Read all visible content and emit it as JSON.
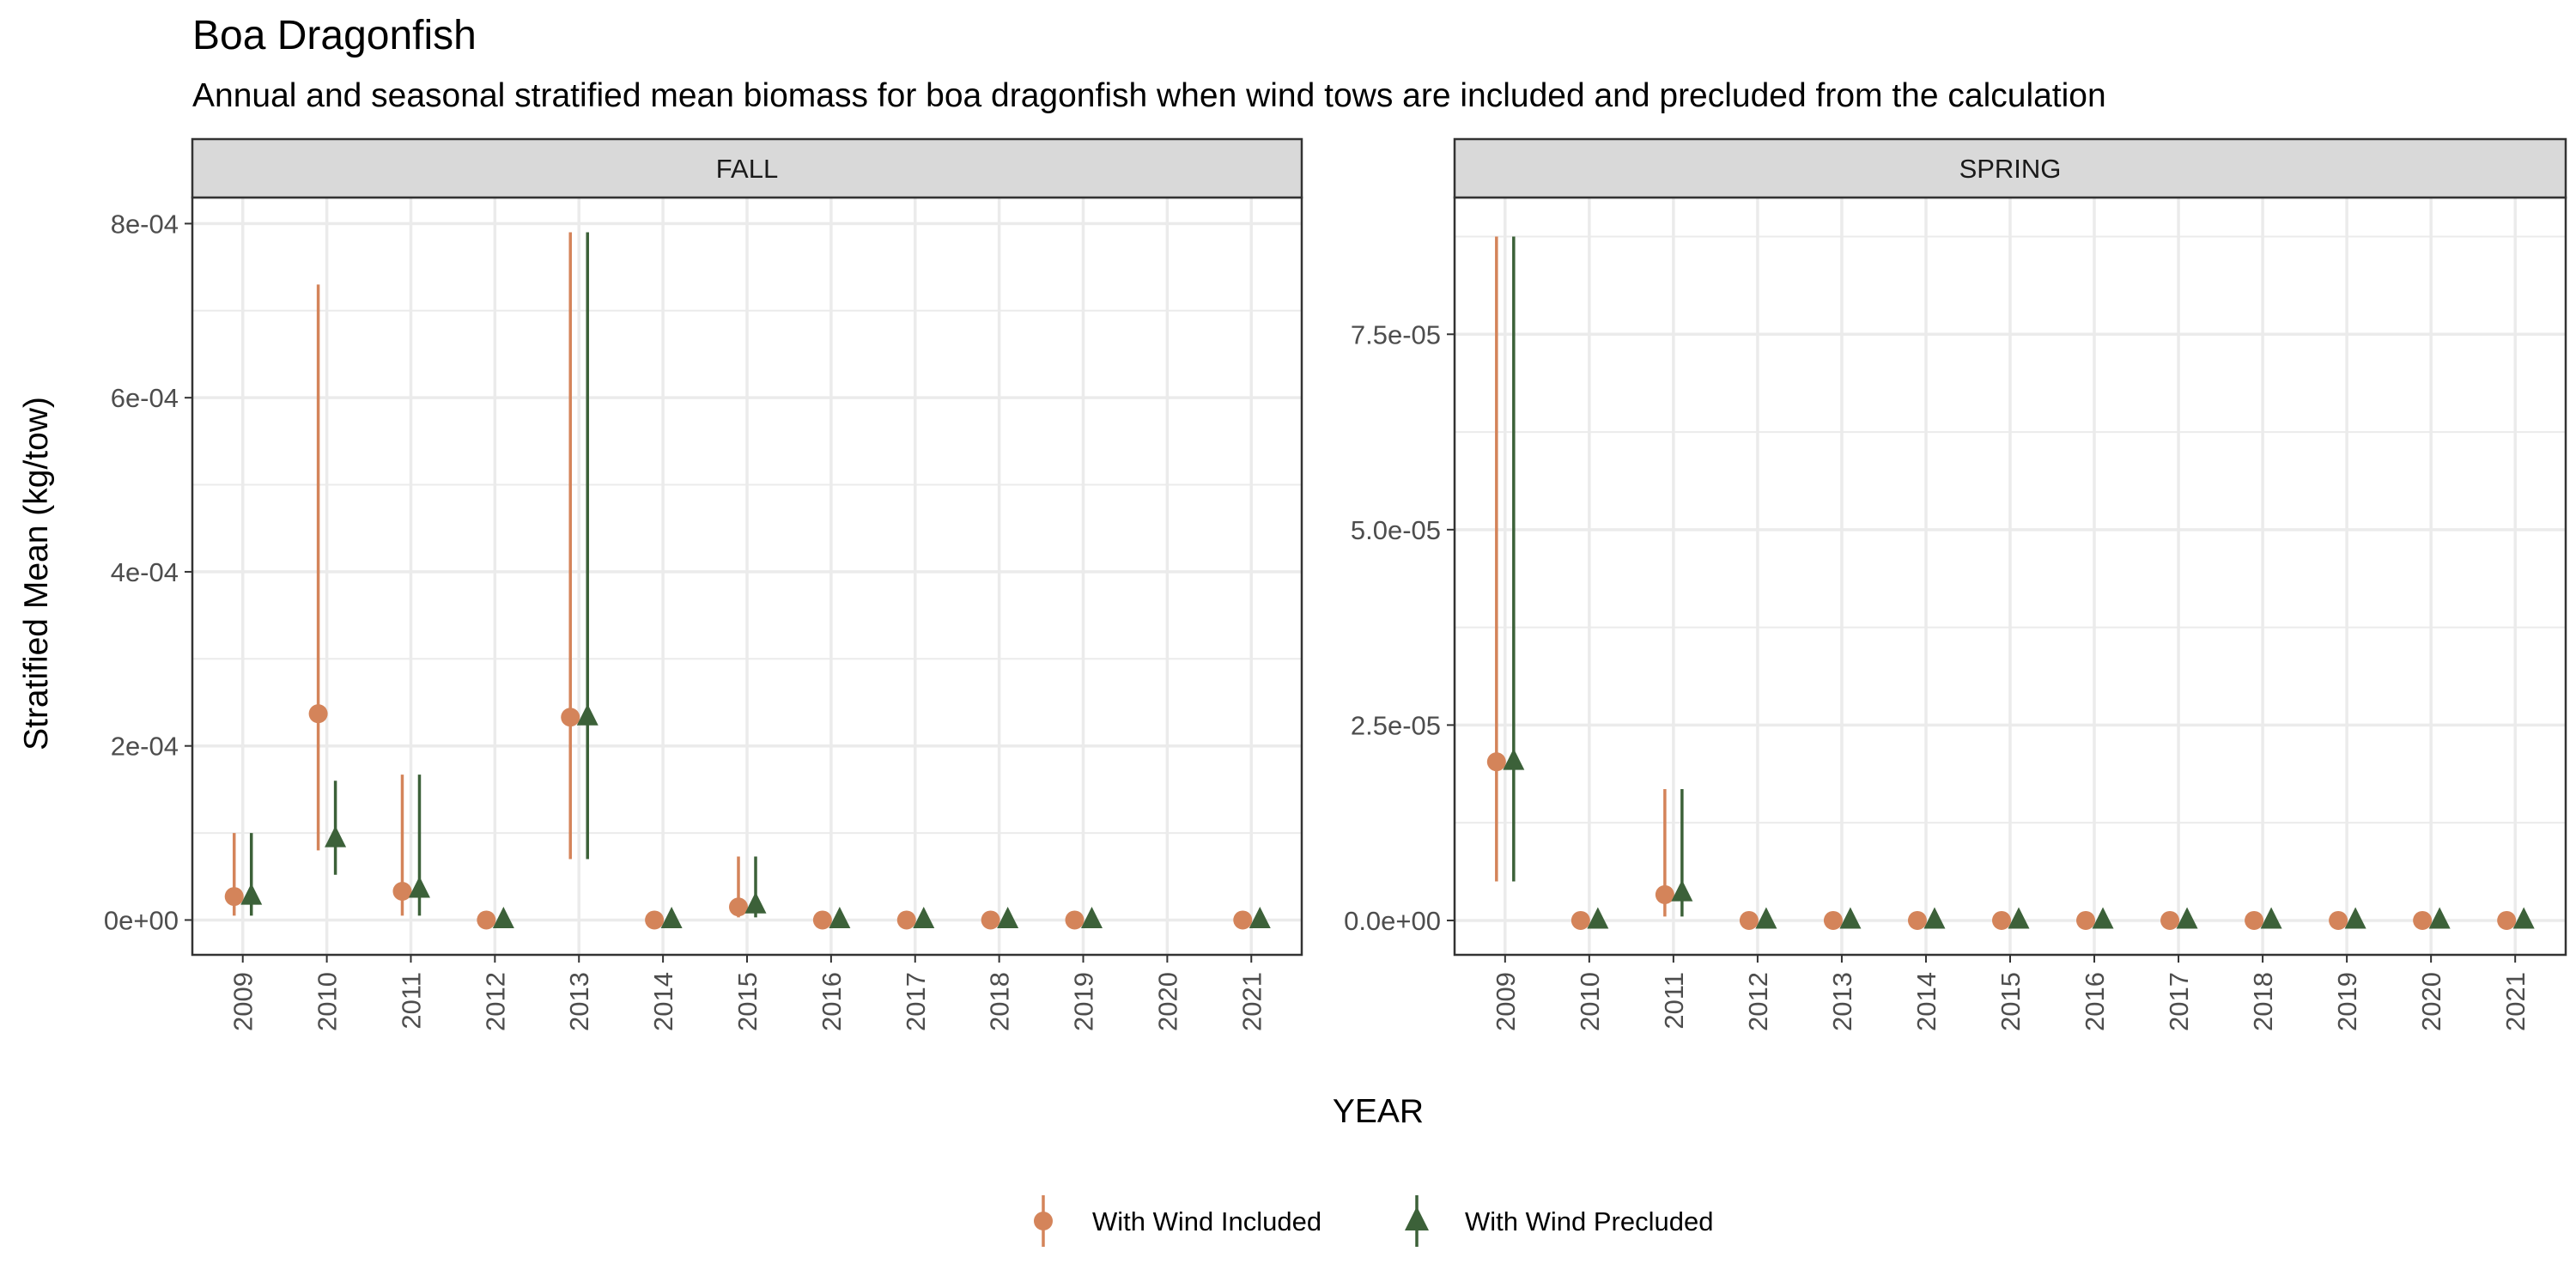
{
  "title": "Boa Dragonfish",
  "subtitle": "Annual and seasonal stratified mean biomass for boa dragonfish when wind tows are included and precluded from the calculation",
  "colors": {
    "included": "#D4845A",
    "precluded": "#3C6139",
    "strip_bg": "#D9D9D9",
    "grid": "#EBEBEB"
  },
  "chart_data": {
    "type": "scatter",
    "xlabel": "YEAR",
    "ylabel": "Stratified Mean (kg/tow)",
    "grid": true,
    "legend_position": "bottom",
    "legend": [
      {
        "name": "With Wind Included",
        "shape": "circle",
        "color": "#D4845A"
      },
      {
        "name": "With Wind Precluded",
        "shape": "triangle",
        "color": "#3C6139"
      }
    ],
    "panels": [
      {
        "name": "FALL",
        "ylim": [
          -4e-05,
          0.00083
        ],
        "yticks": [
          0,
          0.0002,
          0.0004,
          0.0006,
          0.0008
        ],
        "ytick_labels": [
          "0e+00",
          "2e-04",
          "4e-04",
          "6e-04",
          "8e-04"
        ],
        "categories": [
          "2009",
          "2010",
          "2011",
          "2012",
          "2013",
          "2014",
          "2015",
          "2016",
          "2017",
          "2018",
          "2019",
          "2020",
          "2021"
        ],
        "series": [
          {
            "name": "With Wind Included",
            "points": [
              {
                "x": "2009",
                "y": 2.7e-05,
                "lo": 5e-06,
                "hi": 0.0001
              },
              {
                "x": "2010",
                "y": 0.000237,
                "lo": 8e-05,
                "hi": 0.00073
              },
              {
                "x": "2011",
                "y": 3.3e-05,
                "lo": 5e-06,
                "hi": 0.000167
              },
              {
                "x": "2012",
                "y": 0
              },
              {
                "x": "2013",
                "y": 0.000233,
                "lo": 7e-05,
                "hi": 0.00079
              },
              {
                "x": "2014",
                "y": 0
              },
              {
                "x": "2015",
                "y": 1.5e-05,
                "lo": 3e-06,
                "hi": 7.3e-05
              },
              {
                "x": "2016",
                "y": 0
              },
              {
                "x": "2017",
                "y": 0
              },
              {
                "x": "2018",
                "y": 0
              },
              {
                "x": "2019",
                "y": 0
              },
              {
                "x": "2021",
                "y": 0
              }
            ]
          },
          {
            "name": "With Wind Precluded",
            "points": [
              {
                "x": "2009",
                "y": 2.7e-05,
                "lo": 5e-06,
                "hi": 0.0001
              },
              {
                "x": "2010",
                "y": 9.3e-05,
                "lo": 5.2e-05,
                "hi": 0.00016
              },
              {
                "x": "2011",
                "y": 3.5e-05,
                "lo": 5e-06,
                "hi": 0.000167
              },
              {
                "x": "2012",
                "y": 0
              },
              {
                "x": "2013",
                "y": 0.000233,
                "lo": 7e-05,
                "hi": 0.00079
              },
              {
                "x": "2014",
                "y": 0
              },
              {
                "x": "2015",
                "y": 1.7e-05,
                "lo": 3e-06,
                "hi": 7.3e-05
              },
              {
                "x": "2016",
                "y": 0
              },
              {
                "x": "2017",
                "y": 0
              },
              {
                "x": "2018",
                "y": 0
              },
              {
                "x": "2019",
                "y": 0
              },
              {
                "x": "2021",
                "y": 0
              }
            ]
          }
        ]
      },
      {
        "name": "SPRING",
        "ylim": [
          -4.4e-06,
          9.25e-05
        ],
        "yticks": [
          0,
          2.5e-05,
          5e-05,
          7.5e-05
        ],
        "ytick_labels": [
          "0.0e+00",
          "2.5e-05",
          "5.0e-05",
          "7.5e-05"
        ],
        "categories": [
          "2009",
          "2010",
          "2011",
          "2012",
          "2013",
          "2014",
          "2015",
          "2016",
          "2017",
          "2018",
          "2019",
          "2020",
          "2021"
        ],
        "series": [
          {
            "name": "With Wind Included",
            "points": [
              {
                "x": "2009",
                "y": 2.03e-05,
                "lo": 5e-06,
                "hi": 8.75e-05
              },
              {
                "x": "2010",
                "y": 0
              },
              {
                "x": "2011",
                "y": 3.3e-06,
                "lo": 5e-07,
                "hi": 1.68e-05
              },
              {
                "x": "2012",
                "y": 0
              },
              {
                "x": "2013",
                "y": 0
              },
              {
                "x": "2014",
                "y": 0
              },
              {
                "x": "2015",
                "y": 0
              },
              {
                "x": "2016",
                "y": 0
              },
              {
                "x": "2017",
                "y": 0
              },
              {
                "x": "2018",
                "y": 0
              },
              {
                "x": "2019",
                "y": 0
              },
              {
                "x": "2020",
                "y": 0
              },
              {
                "x": "2021",
                "y": 0
              }
            ]
          },
          {
            "name": "With Wind Precluded",
            "points": [
              {
                "x": "2009",
                "y": 2.03e-05,
                "lo": 5e-06,
                "hi": 8.75e-05
              },
              {
                "x": "2010",
                "y": 0
              },
              {
                "x": "2011",
                "y": 3.5e-06,
                "lo": 5e-07,
                "hi": 1.68e-05
              },
              {
                "x": "2012",
                "y": 0
              },
              {
                "x": "2013",
                "y": 0
              },
              {
                "x": "2014",
                "y": 0
              },
              {
                "x": "2015",
                "y": 0
              },
              {
                "x": "2016",
                "y": 0
              },
              {
                "x": "2017",
                "y": 0
              },
              {
                "x": "2018",
                "y": 0
              },
              {
                "x": "2019",
                "y": 0
              },
              {
                "x": "2020",
                "y": 0
              },
              {
                "x": "2021",
                "y": 0
              }
            ]
          }
        ]
      }
    ]
  }
}
